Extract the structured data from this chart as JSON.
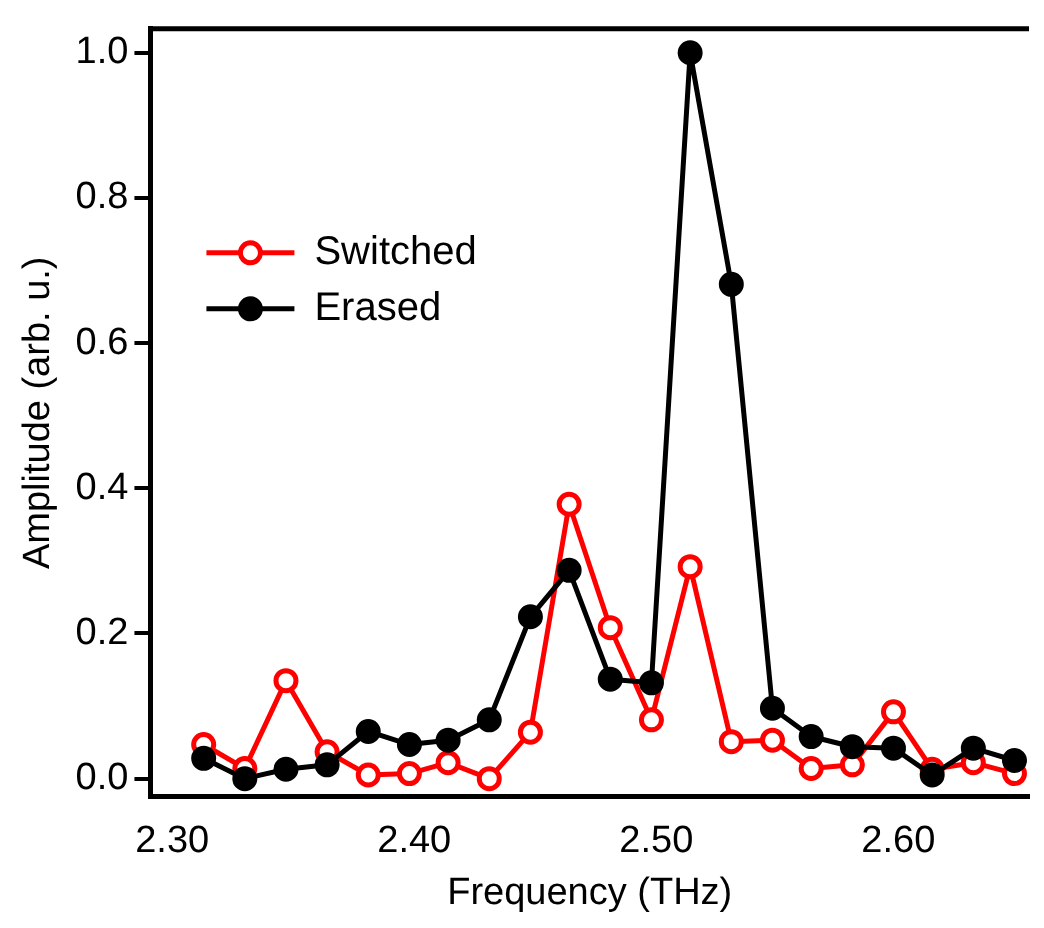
{
  "chart_data": {
    "type": "line",
    "xlabel": "Frequency (THz)",
    "ylabel": "Amplitude (arb. u.)",
    "xlim": [
      2.291,
      2.654
    ],
    "xticks": [
      {
        "value": 2.3,
        "label": "2.30"
      },
      {
        "value": 2.4,
        "label": "2.40"
      },
      {
        "value": 2.5,
        "label": "2.50"
      },
      {
        "value": 2.6,
        "label": "2.60"
      }
    ],
    "ylim": [
      -0.025,
      1.033
    ],
    "yticks": [
      {
        "value": 0,
        "label": "0.0"
      },
      {
        "value": 0.2,
        "label": "0.2"
      },
      {
        "value": 0.4,
        "label": "0.4"
      },
      {
        "value": 0.6,
        "label": "0.6"
      },
      {
        "value": 0.8,
        "label": "0.8"
      },
      {
        "value": 1,
        "label": "1.0"
      }
    ],
    "x": [
      2.313,
      2.33,
      2.347,
      2.364,
      2.381,
      2.398,
      2.414,
      2.431,
      2.448,
      2.464,
      2.481,
      2.498,
      2.514,
      2.531,
      2.548,
      2.564,
      2.581,
      2.598,
      2.614,
      2.631,
      2.648
    ],
    "series": [
      {
        "name": "Switched",
        "color": "#ff0000",
        "marker": "circle",
        "values": [
          0.047,
          0.014,
          0.135,
          0.037,
          0.005,
          0.007,
          0.022,
          0.0,
          0.064,
          0.378,
          0.208,
          0.081,
          0.292,
          0.051,
          0.053,
          0.014,
          0.019,
          0.092,
          0.013,
          0.022,
          0.007
        ]
      },
      {
        "name": "Erased",
        "color": "#000000",
        "marker": "circle",
        "values": [
          0.028,
          0.0,
          0.013,
          0.019,
          0.065,
          0.047,
          0.053,
          0.081,
          0.223,
          0.287,
          0.137,
          0.132,
          1.0,
          0.681,
          0.097,
          0.058,
          0.044,
          0.042,
          0.005,
          0.042,
          0.025
        ]
      }
    ],
    "legend": "top left",
    "grid": false
  }
}
